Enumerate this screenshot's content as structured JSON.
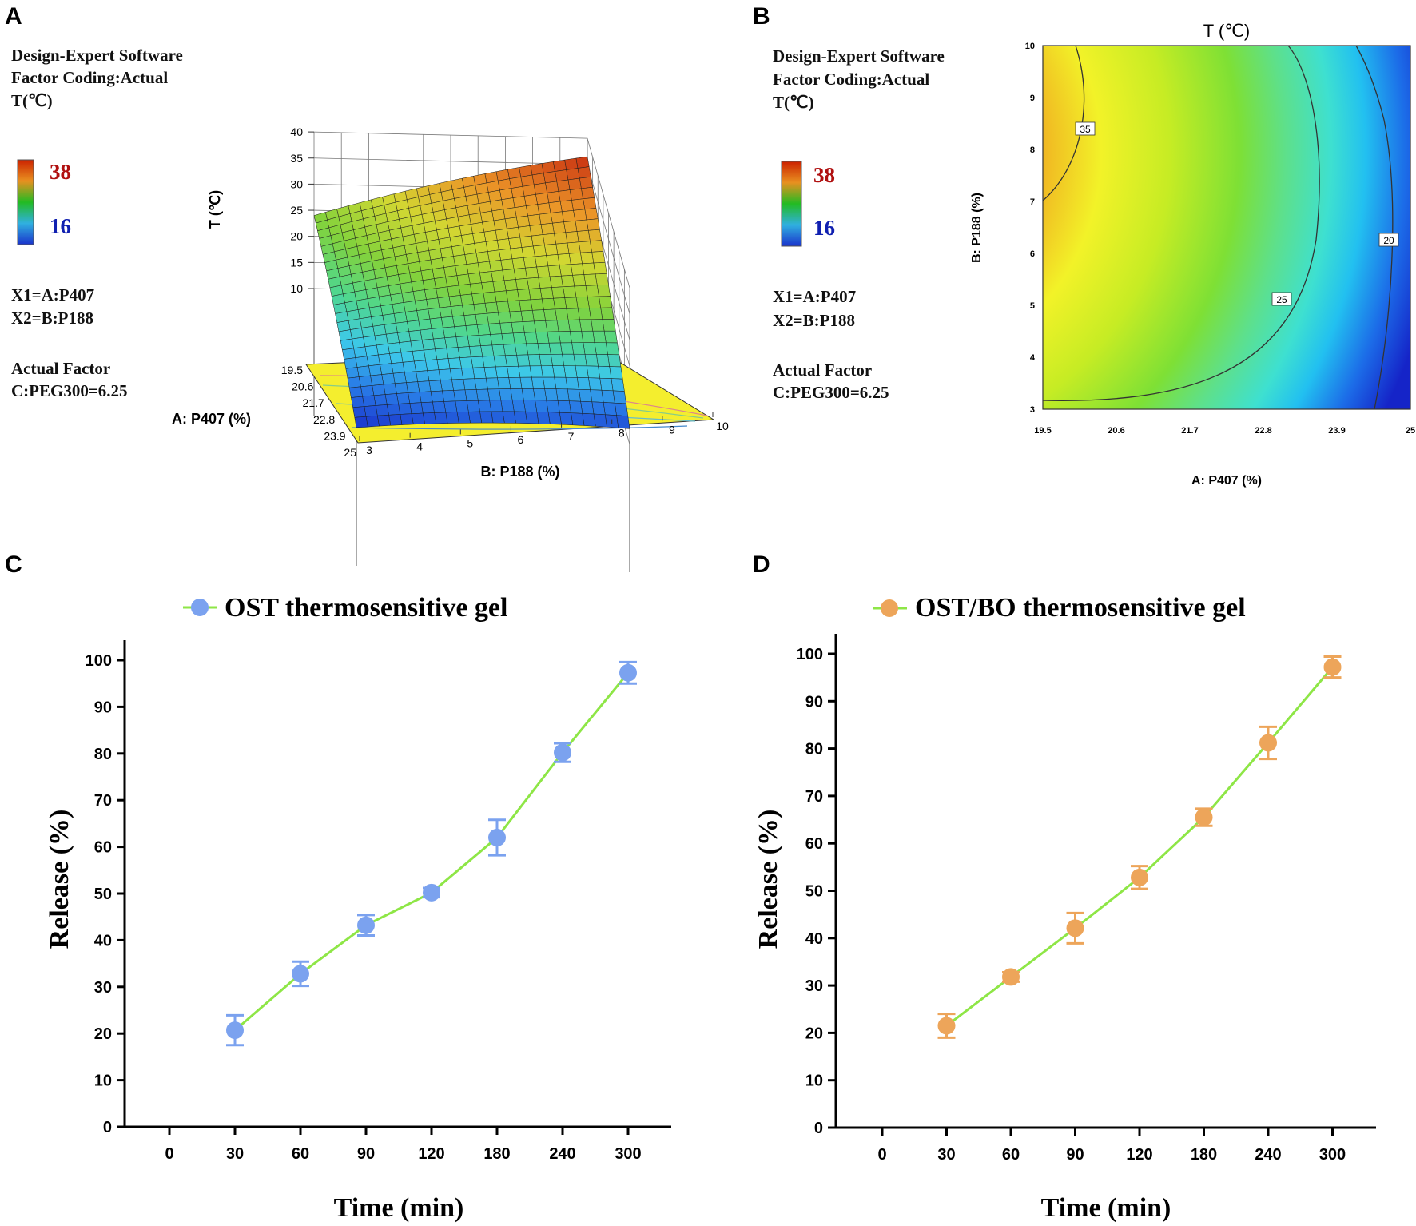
{
  "panels": {
    "a": {
      "letter": "A"
    },
    "b": {
      "letter": "B"
    },
    "c": {
      "letter": "C"
    },
    "d": {
      "letter": "D"
    }
  },
  "design_info": {
    "line1": "Design-Expert Software",
    "line2": "Factor Coding:Actual",
    "line3": "T(℃)",
    "legend_high": "38",
    "legend_low": "16",
    "x1": "X1=A:P407",
    "x2": "X2=B:P188",
    "actual_factor": "Actual Factor",
    "factor_value": "C:PEG300=6.25"
  },
  "colors": {
    "hot": "#cc2200",
    "cold": "#1a33cc",
    "blue_series": "#7ba2ef",
    "orange_series": "#eda55a",
    "line_green": "#8ee646",
    "contour_line": "#333333"
  },
  "chart_data": [
    {
      "type": "surface3d",
      "panel": "A",
      "zlabel": "T (℃)",
      "z_ticks": [
        "10",
        "15",
        "20",
        "25",
        "30",
        "35",
        "40"
      ],
      "xlabel": "A: P407 (%)",
      "a_ticks": [
        "19.5",
        "20.6",
        "21.7",
        "22.8",
        "23.9",
        "25"
      ],
      "ylabel": "B: P188 (%)",
      "b_ticks": [
        "3",
        "4",
        "5",
        "6",
        "7",
        "8",
        "9",
        "10"
      ],
      "corner_values": {
        "A19.5_B3": 24,
        "A19.5_B10": 36.5,
        "A25_B3": 12,
        "A25_B10": 13
      }
    },
    {
      "type": "contour",
      "panel": "B",
      "title": "T (℃)",
      "xlabel": "A: P407 (%)",
      "ylabel": "B: P188 (%)",
      "x_ticks": [
        "19.5",
        "20.6",
        "21.7",
        "22.8",
        "23.9",
        "25"
      ],
      "y_ticks": [
        "3",
        "4",
        "5",
        "6",
        "7",
        "8",
        "9",
        "10"
      ],
      "contour_labels": [
        "35",
        "25",
        "20"
      ]
    },
    {
      "type": "line",
      "panel": "C",
      "title": "OST  thermosensitive  gel",
      "xlabel": "Time (min)",
      "ylabel": "Release (%)",
      "categories": [
        "0",
        "30",
        "60",
        "90",
        "120",
        "180",
        "240",
        "300"
      ],
      "y_ticks": [
        "0",
        "10",
        "20",
        "30",
        "40",
        "50",
        "60",
        "70",
        "80",
        "90",
        "100"
      ],
      "ylim": [
        0,
        105
      ],
      "series": [
        {
          "name": "OST  thermosensitive  gel",
          "x": [
            "30",
            "60",
            "90",
            "120",
            "180",
            "240",
            "300"
          ],
          "values": [
            20.7,
            32.8,
            43.2,
            50.2,
            62.0,
            80.2,
            97.3
          ],
          "errors": [
            3.2,
            2.6,
            2.2,
            1.0,
            3.8,
            2.0,
            2.3
          ]
        }
      ]
    },
    {
      "type": "line",
      "panel": "D",
      "title": "OST/BO thermosensitive gel",
      "xlabel": "Time (min)",
      "ylabel": "Release (%)",
      "categories": [
        "0",
        "30",
        "60",
        "90",
        "120",
        "180",
        "240",
        "300"
      ],
      "y_ticks": [
        "0",
        "10",
        "20",
        "30",
        "40",
        "50",
        "60",
        "70",
        "80",
        "90",
        "100"
      ],
      "ylim": [
        0,
        105
      ],
      "series": [
        {
          "name": "OST/BO thermosensitive gel",
          "x": [
            "30",
            "60",
            "90",
            "120",
            "180",
            "240",
            "300"
          ],
          "values": [
            21.5,
            31.8,
            42.1,
            52.8,
            65.5,
            81.2,
            97.2
          ],
          "errors": [
            2.5,
            1.0,
            3.2,
            2.4,
            1.8,
            3.4,
            2.2
          ]
        }
      ]
    }
  ]
}
